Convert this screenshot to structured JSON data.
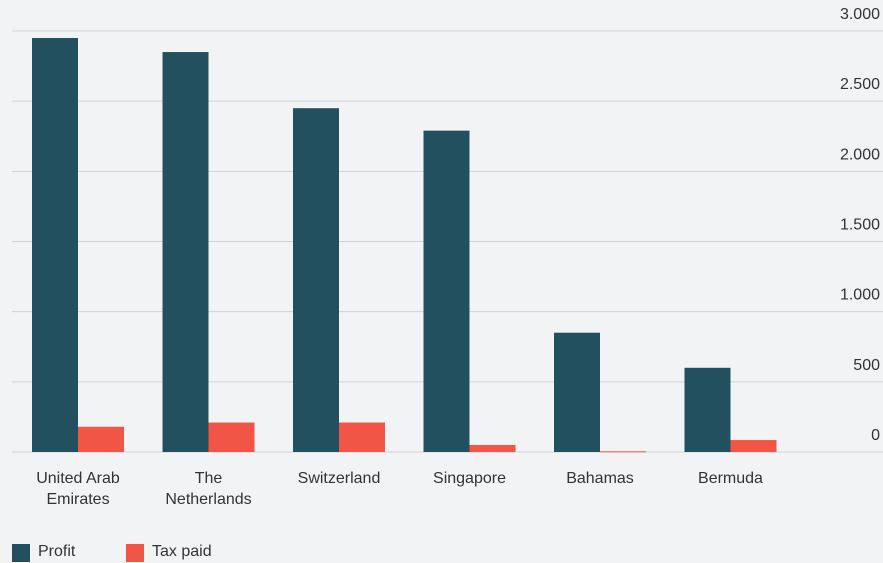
{
  "chart_data": {
    "type": "bar",
    "categories": [
      "United Arab Emirates",
      "The Netherlands",
      "Switzerland",
      "Singapore",
      "Bahamas",
      "Bermuda"
    ],
    "series": [
      {
        "name": "Profit",
        "color": "#22505f",
        "values": [
          2950,
          2850,
          2450,
          2290,
          850,
          600
        ]
      },
      {
        "name": "Tax paid",
        "color": "#f05545",
        "values": [
          180,
          210,
          210,
          50,
          5,
          85
        ]
      }
    ],
    "ylim": [
      0,
      3000
    ],
    "yticks": [
      0,
      500,
      {
        "value": 1000,
        "label": "1.000"
      },
      {
        "value": 1500,
        "label": "1.500"
      },
      {
        "value": 2000,
        "label": "2.000"
      },
      {
        "value": 2500,
        "label": "2.500"
      },
      {
        "value": 3000,
        "label": "3.000"
      }
    ],
    "grid": true
  }
}
